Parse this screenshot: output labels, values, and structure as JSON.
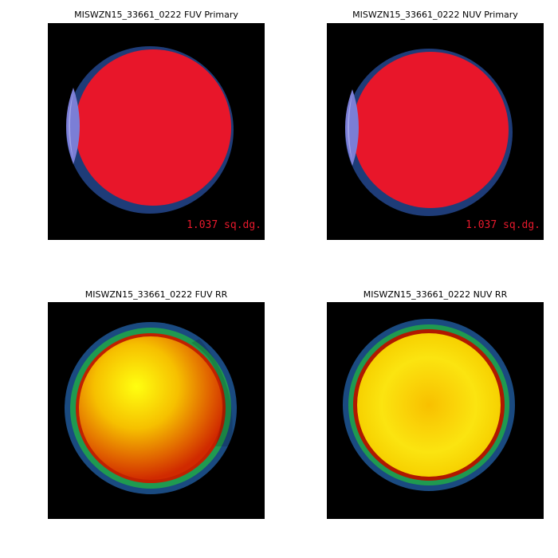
{
  "panels": [
    {
      "title": "MISWZN15_33661_0222 FUV Primary",
      "annotation": "1.037 sq.dg."
    },
    {
      "title": "MISWZN15_33661_0222 NUV Primary",
      "annotation": "1.037 sq.dg."
    },
    {
      "title": "MISWZN15_33661_0222 FUV RR"
    },
    {
      "title": "MISWZN15_33661_0222 NUV RR"
    }
  ]
}
